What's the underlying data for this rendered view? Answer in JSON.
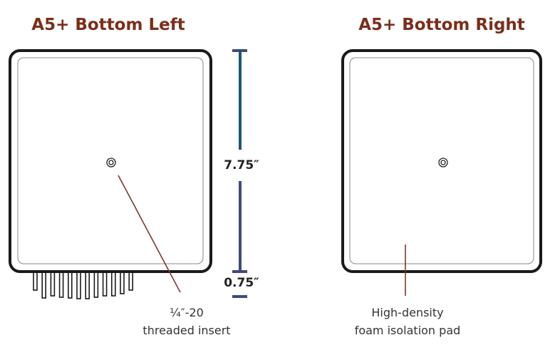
{
  "left_panel": {
    "title": "A5+ Bottom Left",
    "callout_line1": "¼″-20",
    "callout_line2": "threaded insert"
  },
  "right_panel": {
    "title": "A5+ Bottom Right",
    "callout_line1": "High-density",
    "callout_line2": "foam isolation pad"
  },
  "dimensions": {
    "height_label": "7.75″",
    "fin_label": "0.75″"
  },
  "colors": {
    "title": "#7a2e1a",
    "dimension_main": "#1b5878",
    "dimension_fin": "#3f4a7c",
    "leader": "#7a3a2e"
  }
}
